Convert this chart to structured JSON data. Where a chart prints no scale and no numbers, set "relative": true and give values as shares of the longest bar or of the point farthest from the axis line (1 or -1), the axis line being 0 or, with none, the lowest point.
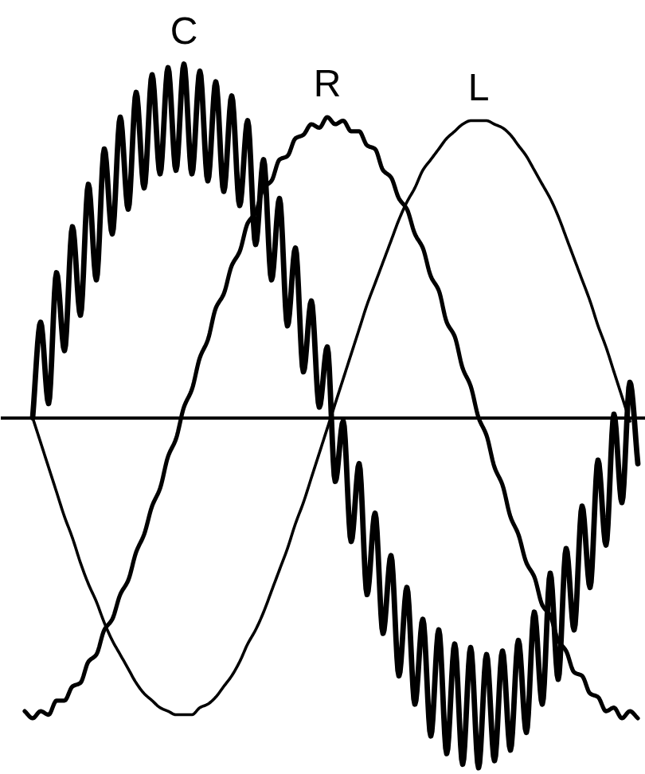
{
  "chart_data": {
    "type": "line",
    "relative": true,
    "tick_labels": false,
    "categories": [
      null,
      null,
      null,
      null,
      null,
      null,
      null,
      null,
      null,
      null,
      null,
      null,
      null,
      null,
      null,
      null,
      null,
      null,
      null,
      null,
      null,
      null,
      null,
      null,
      null,
      null,
      null,
      null,
      null,
      null,
      null,
      null,
      null,
      null,
      null,
      null,
      null,
      null,
      null,
      null,
      null,
      null,
      null,
      null,
      null,
      null,
      null,
      null,
      null,
      null,
      null,
      null,
      null,
      null,
      null,
      null,
      null,
      null,
      null,
      null,
      null,
      null,
      null,
      null,
      null,
      null,
      null,
      null,
      null,
      null,
      null,
      null,
      null,
      null,
      null,
      null,
      null,
      null
    ],
    "series": [
      {
        "name": "C",
        "color": "#000000",
        "values": [
          null,
          0.0,
          0.27,
          0.04,
          0.41,
          0.19,
          0.54,
          0.29,
          0.66,
          0.39,
          0.76,
          0.52,
          0.85,
          0.59,
          0.92,
          0.65,
          0.97,
          0.69,
          0.99,
          0.7,
          1.0,
          0.69,
          0.98,
          0.67,
          0.95,
          0.64,
          0.91,
          0.6,
          0.84,
          0.49,
          0.73,
          0.39,
          0.62,
          0.26,
          0.48,
          0.13,
          0.33,
          0.03,
          0.2,
          -0.18,
          -0.01,
          -0.35,
          -0.13,
          -0.5,
          -0.27,
          -0.61,
          -0.39,
          -0.73,
          -0.48,
          -0.81,
          -0.57,
          -0.9,
          -0.6,
          -0.95,
          -0.64,
          -0.98,
          -0.65,
          -0.99,
          -0.67,
          -0.97,
          -0.66,
          -0.94,
          -0.63,
          -0.89,
          -0.55,
          -0.81,
          -0.44,
          -0.74,
          -0.37,
          -0.6,
          -0.25,
          -0.48,
          -0.12,
          -0.36,
          0.01,
          -0.24,
          0.1,
          -0.13
        ]
      },
      {
        "name": "R",
        "color": "#000000",
        "values": [
          -0.83,
          -0.85,
          -0.83,
          -0.84,
          -0.8,
          -0.8,
          -0.76,
          -0.75,
          -0.69,
          -0.67,
          -0.6,
          -0.57,
          -0.5,
          -0.46,
          -0.38,
          -0.33,
          -0.25,
          -0.2,
          -0.11,
          -0.06,
          0.03,
          0.08,
          0.17,
          0.22,
          0.31,
          0.35,
          0.43,
          0.47,
          0.55,
          0.58,
          0.65,
          0.67,
          0.73,
          0.74,
          0.79,
          0.8,
          0.83,
          0.82,
          0.85,
          0.83,
          0.84,
          0.81,
          0.81,
          0.77,
          0.76,
          0.7,
          0.68,
          0.62,
          0.59,
          0.52,
          0.48,
          0.4,
          0.36,
          0.27,
          0.23,
          0.14,
          0.09,
          0.0,
          -0.05,
          -0.14,
          -0.19,
          -0.28,
          -0.33,
          -0.41,
          -0.45,
          -0.53,
          -0.56,
          -0.63,
          -0.66,
          -0.72,
          -0.73,
          -0.78,
          -0.79,
          -0.83,
          -0.82,
          -0.85,
          -0.83,
          -0.85
        ]
      },
      {
        "name": "L",
        "color": "#000000",
        "values": [
          null,
          0.0,
          -0.07,
          -0.14,
          -0.21,
          -0.28,
          -0.34,
          -0.41,
          -0.47,
          -0.52,
          -0.58,
          -0.63,
          -0.67,
          -0.71,
          -0.75,
          -0.78,
          -0.8,
          -0.82,
          -0.83,
          -0.84,
          -0.84,
          -0.84,
          -0.82,
          -0.81,
          -0.79,
          -0.76,
          -0.73,
          -0.69,
          -0.64,
          -0.6,
          -0.55,
          -0.49,
          -0.43,
          -0.37,
          -0.3,
          -0.24,
          -0.17,
          -0.1,
          -0.03,
          0.04,
          0.11,
          0.18,
          0.25,
          0.32,
          0.38,
          0.44,
          0.5,
          0.56,
          0.61,
          0.65,
          0.7,
          0.73,
          0.76,
          0.79,
          0.81,
          0.83,
          0.84,
          0.84,
          0.84,
          0.83,
          0.82,
          0.8,
          0.77,
          0.74,
          0.7,
          0.66,
          0.62,
          0.57,
          0.51,
          0.45,
          0.39,
          0.33,
          0.26,
          0.2,
          0.13,
          0.06,
          -0.01,
          null
        ]
      }
    ]
  }
}
